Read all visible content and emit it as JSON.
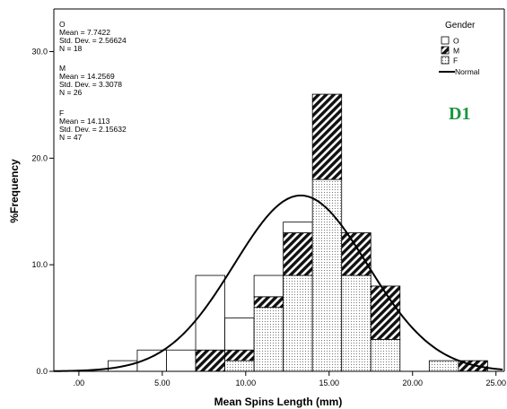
{
  "chart_data": {
    "type": "bar",
    "subtype": "stacked-histogram-with-normal-curve",
    "xlabel": "Mean Spins Length (mm)",
    "ylabel": "%Frequency",
    "xlim": [
      -1.5,
      25.5
    ],
    "ylim": [
      0,
      34
    ],
    "xticks": [
      0,
      5,
      10,
      15,
      20,
      25
    ],
    "xtick_labels": [
      ".00",
      "5.00",
      "10.00",
      "15.00",
      "20.00",
      "25.00"
    ],
    "yticks": [
      0,
      10,
      20,
      30
    ],
    "ytick_labels": [
      "0.0",
      "10.0",
      "20.0",
      "30.0"
    ],
    "grid": false,
    "bin_width": 1.75,
    "bins": [
      {
        "x0": 1.75,
        "x1": 3.5,
        "F": 0,
        "M": 0,
        "O": 1
      },
      {
        "x0": 3.5,
        "x1": 5.25,
        "F": 0,
        "M": 0,
        "O": 2
      },
      {
        "x0": 5.25,
        "x1": 7.0,
        "F": 0,
        "M": 0,
        "O": 2
      },
      {
        "x0": 7.0,
        "x1": 8.75,
        "F": 0,
        "M": 2,
        "O": 7
      },
      {
        "x0": 8.75,
        "x1": 10.5,
        "F": 1,
        "M": 1,
        "O": 3
      },
      {
        "x0": 10.5,
        "x1": 12.25,
        "F": 6,
        "M": 1,
        "O": 2
      },
      {
        "x0": 12.25,
        "x1": 14.0,
        "F": 9,
        "M": 4,
        "O": 1
      },
      {
        "x0": 14.0,
        "x1": 15.75,
        "F": 18,
        "M": 8,
        "O": 0
      },
      {
        "x0": 15.75,
        "x1": 17.5,
        "F": 9,
        "M": 4,
        "O": 0
      },
      {
        "x0": 17.5,
        "x1": 19.25,
        "F": 3,
        "M": 5,
        "O": 0
      },
      {
        "x0": 21.0,
        "x1": 22.75,
        "F": 1,
        "M": 0,
        "O": 0
      },
      {
        "x0": 22.75,
        "x1": 24.5,
        "F": 0,
        "M": 1,
        "O": 0
      }
    ],
    "normal_curve": {
      "mean": 13.3,
      "sd": 4.0,
      "peak": 16.5
    },
    "legend": {
      "title": "Gender",
      "placement": "top-right",
      "entries": [
        {
          "key": "O",
          "label": "O",
          "fill": "white"
        },
        {
          "key": "M",
          "label": "M",
          "fill": "diagonal-hatch"
        },
        {
          "key": "F",
          "label": "F",
          "fill": "dots"
        },
        {
          "key": "normal",
          "label": "Normal",
          "fill": "line"
        }
      ]
    },
    "stats": [
      {
        "group": "O",
        "mean": "Mean = 7.7422",
        "sd": "Std. Dev. = 2.56624",
        "n": "N = 18"
      },
      {
        "group": "M",
        "mean": "Mean = 14.2569",
        "sd": "Std. Dev. = 3.3078",
        "n": "N = 26"
      },
      {
        "group": "F",
        "mean": "Mean = 14.113",
        "sd": "Std. Dev. = 2.15632",
        "n": "N = 47"
      }
    ],
    "annotation": {
      "text": "D1",
      "color": "#1a9641"
    }
  }
}
